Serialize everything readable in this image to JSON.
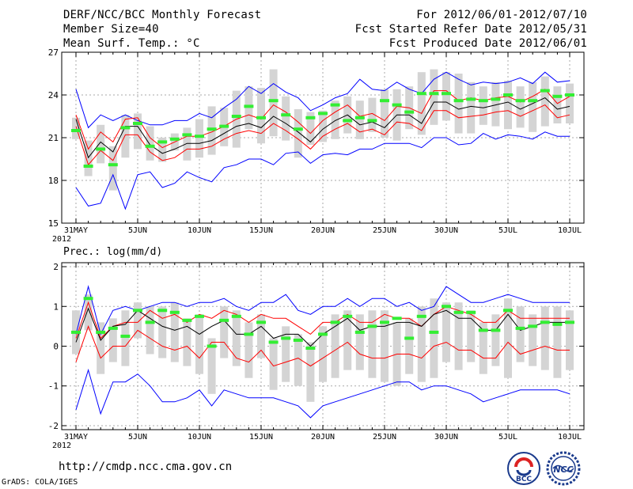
{
  "header": {
    "left": [
      "DERF/NCC/BCC Monthly Forecast",
      "Member Size=40",
      "Mean Surf. Temp.: °C"
    ],
    "right": [
      "For 2012/06/01-2012/07/10",
      "Fcst Started Refer Date 2012/05/31",
      "Fcst Produced Date 2012/06/01"
    ]
  },
  "footer": {
    "url": "http://cmdp.ncc.cma.gov.cn",
    "credit": "GrADS: COLA/IGES",
    "logo_bcc": "BCC",
    "logo_ncc": "NCC"
  },
  "colors": {
    "envelope": "#0000ff",
    "spread": "#ff0000",
    "mean": "#000000",
    "median": "#33ee33",
    "box": "#d4d4d4",
    "grid": "#aaaaaa"
  },
  "chart_data": [
    {
      "type": "line",
      "title": "Mean Surf. Temp.: °C",
      "x_ticks": [
        "31MAY",
        "5JUN",
        "10JUN",
        "15JUN",
        "20JUN",
        "25JUN",
        "30JUN",
        "5JUL",
        "10JUL"
      ],
      "x_tick_days": [
        0,
        5,
        10,
        15,
        20,
        25,
        30,
        35,
        40
      ],
      "x_sublabel": "2012",
      "ylim": [
        15,
        27
      ],
      "y_ticks": [
        15,
        18,
        21,
        24,
        27
      ],
      "grid": true,
      "series": [
        {
          "name": "max",
          "color": "blue",
          "values": [
            24.4,
            21.7,
            22.6,
            22.2,
            22.6,
            22.2,
            21.9,
            21.9,
            22.2,
            22.2,
            22.7,
            22.4,
            23.1,
            23.7,
            24.6,
            24.1,
            24.8,
            24.2,
            23.8,
            22.9,
            23.3,
            23.8,
            24.1,
            25.1,
            24.4,
            24.3,
            24.9,
            24.4,
            24.1,
            25.1,
            25.6,
            25.1,
            24.7,
            24.9,
            24.8,
            24.9,
            25.2,
            24.8,
            25.6,
            24.9,
            25.0
          ]
        },
        {
          "name": "upper",
          "color": "red",
          "values": [
            22.6,
            20.2,
            21.4,
            20.7,
            22.3,
            22.4,
            21.0,
            20.3,
            20.7,
            21.1,
            21.1,
            21.4,
            21.8,
            22.3,
            22.6,
            22.3,
            23.3,
            22.8,
            22.1,
            21.3,
            22.2,
            22.8,
            23.3,
            22.5,
            22.7,
            22.2,
            23.2,
            23.1,
            22.7,
            24.3,
            24.3,
            23.6,
            23.8,
            23.6,
            23.8,
            23.9,
            23.5,
            23.9,
            24.4,
            23.4,
            23.9
          ]
        },
        {
          "name": "mean",
          "color": "black",
          "values": [
            22.3,
            19.6,
            20.7,
            20.0,
            21.8,
            21.8,
            20.5,
            19.9,
            20.2,
            20.6,
            20.6,
            20.8,
            21.3,
            21.8,
            22.0,
            21.7,
            22.5,
            22.0,
            21.4,
            20.7,
            21.6,
            22.2,
            22.6,
            21.9,
            22.1,
            21.7,
            22.6,
            22.6,
            22.0,
            23.5,
            23.5,
            23.0,
            23.2,
            23.1,
            23.3,
            23.5,
            23.0,
            23.4,
            23.8,
            23.0,
            23.2
          ]
        },
        {
          "name": "lower",
          "color": "red",
          "values": [
            21.8,
            19.1,
            20.1,
            19.4,
            21.2,
            21.2,
            20.0,
            19.4,
            19.6,
            20.2,
            20.2,
            20.4,
            20.9,
            21.3,
            21.5,
            21.3,
            22.0,
            21.5,
            20.9,
            20.2,
            21.1,
            21.6,
            22.0,
            21.4,
            21.6,
            21.2,
            22.1,
            22.0,
            21.5,
            22.9,
            22.9,
            22.4,
            22.5,
            22.6,
            22.8,
            22.9,
            22.5,
            22.9,
            23.3,
            22.4,
            22.6
          ]
        },
        {
          "name": "min",
          "color": "blue",
          "values": [
            17.5,
            16.2,
            16.4,
            18.4,
            16.0,
            18.4,
            18.6,
            17.5,
            17.8,
            18.6,
            18.2,
            17.9,
            18.9,
            19.1,
            19.5,
            19.5,
            19.1,
            19.9,
            20.0,
            19.2,
            19.8,
            19.9,
            19.8,
            20.2,
            20.2,
            20.6,
            20.6,
            20.6,
            20.3,
            21.0,
            21.0,
            20.5,
            20.6,
            21.3,
            20.9,
            21.2,
            21.1,
            20.9,
            21.4,
            21.1,
            21.1
          ]
        },
        {
          "name": "median",
          "color": "green",
          "values": [
            21.5,
            19.0,
            20.2,
            19.1,
            21.7,
            22.0,
            20.4,
            20.7,
            20.9,
            21.2,
            21.1,
            21.6,
            21.8,
            22.5,
            23.2,
            22.4,
            23.6,
            22.6,
            21.6,
            22.4,
            22.7,
            23.3,
            22.2,
            22.4,
            22.2,
            23.6,
            23.3,
            22.8,
            24.1,
            24.1,
            24.1,
            23.6,
            23.7,
            23.6,
            23.7,
            24.0,
            23.6,
            23.6,
            24.3,
            23.9,
            24.0
          ]
        }
      ],
      "box_ranges": [
        [
          20.9,
          22.4
        ],
        [
          18.3,
          20.8
        ],
        [
          19.2,
          21.9
        ],
        [
          17.3,
          20.4
        ],
        [
          19.6,
          22.6
        ],
        [
          20.2,
          22.7
        ],
        [
          19.4,
          21.8
        ],
        [
          19.3,
          21.0
        ],
        [
          20.1,
          21.3
        ],
        [
          19.4,
          21.7
        ],
        [
          19.6,
          22.3
        ],
        [
          19.8,
          23.2
        ],
        [
          20.4,
          23.1
        ],
        [
          20.3,
          24.3
        ],
        [
          21.6,
          24.6
        ],
        [
          20.6,
          24.5
        ],
        [
          21.1,
          25.8
        ],
        [
          20.8,
          23.9
        ],
        [
          19.6,
          23.0
        ],
        [
          20.5,
          22.8
        ],
        [
          20.7,
          22.9
        ],
        [
          20.9,
          23.6
        ],
        [
          21.3,
          23.9
        ],
        [
          20.9,
          23.6
        ],
        [
          21.4,
          23.8
        ],
        [
          21.0,
          24.4
        ],
        [
          20.8,
          24.4
        ],
        [
          21.6,
          24.6
        ],
        [
          21.2,
          25.6
        ],
        [
          21.9,
          25.8
        ],
        [
          22.2,
          25.6
        ],
        [
          21.3,
          25.5
        ],
        [
          21.3,
          24.9
        ],
        [
          21.9,
          24.6
        ],
        [
          21.8,
          24.9
        ],
        [
          21.6,
          25.0
        ],
        [
          21.7,
          24.6
        ],
        [
          21.4,
          24.9
        ],
        [
          21.8,
          25.3
        ],
        [
          22.0,
          24.6
        ],
        [
          22.0,
          24.8
        ]
      ]
    },
    {
      "type": "line",
      "title": "Prec.: log(mm/d)",
      "x_ticks": [
        "31MAY",
        "5JUN",
        "10JUN",
        "15JUN",
        "20JUN",
        "25JUN",
        "30JUN",
        "5JUL",
        "10JUL"
      ],
      "x_tick_days": [
        0,
        5,
        10,
        15,
        20,
        25,
        30,
        35,
        40
      ],
      "x_sublabel": "2012",
      "ylim": [
        -2.1,
        2.1
      ],
      "y_ticks": [
        -2,
        -1,
        0,
        1,
        2
      ],
      "grid": true,
      "series": [
        {
          "name": "max",
          "color": "blue",
          "values": [
            0.3,
            1.5,
            0.3,
            0.9,
            1.0,
            0.9,
            1.0,
            1.1,
            1.1,
            1.0,
            1.1,
            1.1,
            1.2,
            1.0,
            0.9,
            1.1,
            1.1,
            1.3,
            0.9,
            0.8,
            1.0,
            1.0,
            1.2,
            1.0,
            1.2,
            1.2,
            1.0,
            1.1,
            0.9,
            1.0,
            1.5,
            1.3,
            1.1,
            1.1,
            1.2,
            1.3,
            1.2,
            1.1,
            1.1,
            1.1,
            1.1
          ]
        },
        {
          "name": "upper",
          "color": "red",
          "values": [
            0.2,
            1.1,
            0.2,
            0.5,
            0.6,
            0.6,
            0.9,
            0.7,
            0.8,
            0.6,
            0.8,
            0.7,
            0.9,
            0.8,
            0.6,
            0.8,
            0.7,
            0.7,
            0.5,
            0.3,
            0.6,
            0.6,
            0.8,
            0.6,
            0.6,
            0.8,
            0.7,
            0.7,
            0.5,
            0.8,
            1.0,
            0.9,
            0.8,
            0.6,
            0.6,
            0.9,
            0.7,
            0.7,
            0.7,
            0.7,
            0.7
          ]
        },
        {
          "name": "mean",
          "color": "black",
          "values": [
            0.1,
            0.95,
            0.15,
            0.5,
            0.55,
            0.9,
            0.7,
            0.5,
            0.4,
            0.5,
            0.3,
            0.5,
            0.65,
            0.3,
            0.3,
            0.5,
            0.2,
            0.3,
            0.3,
            0.0,
            0.3,
            0.5,
            0.7,
            0.4,
            0.5,
            0.5,
            0.6,
            0.6,
            0.5,
            0.8,
            0.9,
            0.7,
            0.7,
            0.4,
            0.4,
            0.8,
            0.4,
            0.5,
            0.6,
            0.6,
            0.6
          ]
        },
        {
          "name": "lower",
          "color": "red",
          "values": [
            -0.4,
            0.5,
            -0.3,
            0.0,
            0.0,
            0.4,
            0.2,
            0.0,
            -0.1,
            0.0,
            -0.3,
            0.1,
            0.1,
            -0.3,
            -0.4,
            -0.1,
            -0.5,
            -0.4,
            -0.3,
            -0.5,
            -0.3,
            -0.1,
            0.1,
            -0.2,
            -0.3,
            -0.3,
            -0.2,
            -0.2,
            -0.3,
            0.0,
            0.1,
            -0.1,
            -0.1,
            -0.3,
            -0.3,
            0.1,
            -0.2,
            -0.1,
            0.0,
            -0.1,
            -0.1
          ]
        },
        {
          "name": "min",
          "color": "blue",
          "values": [
            -1.6,
            -0.6,
            -1.7,
            -0.9,
            -0.9,
            -0.7,
            -1.0,
            -1.4,
            -1.4,
            -1.3,
            -1.1,
            -1.5,
            -1.1,
            -1.2,
            -1.3,
            -1.3,
            -1.3,
            -1.4,
            -1.5,
            -1.8,
            -1.5,
            -1.4,
            -1.3,
            -1.2,
            -1.1,
            -1.0,
            -0.9,
            -0.9,
            -1.1,
            -1.0,
            -1.0,
            -1.1,
            -1.2,
            -1.4,
            -1.3,
            -1.2,
            -1.1,
            -1.1,
            -1.1,
            -1.1,
            -1.2
          ]
        },
        {
          "name": "median",
          "color": "green",
          "values": [
            0.35,
            1.2,
            0.35,
            0.45,
            0.25,
            0.9,
            0.6,
            0.9,
            0.85,
            0.65,
            0.75,
            0.0,
            0.65,
            0.75,
            0.3,
            0.6,
            0.1,
            0.2,
            0.15,
            -0.05,
            0.3,
            0.6,
            0.75,
            0.35,
            0.5,
            0.6,
            0.7,
            0.2,
            0.75,
            0.35,
            1.0,
            0.85,
            0.85,
            0.4,
            0.4,
            0.9,
            0.45,
            0.5,
            0.6,
            0.55,
            0.6
          ]
        }
      ],
      "box_ranges": [
        [
          -0.2,
          0.9
        ],
        [
          0.4,
          1.3
        ],
        [
          -0.7,
          0.6
        ],
        [
          -0.4,
          0.7
        ],
        [
          -0.5,
          0.9
        ],
        [
          0.2,
          1.1
        ],
        [
          -0.2,
          1.0
        ],
        [
          -0.3,
          1.0
        ],
        [
          -0.4,
          1.1
        ],
        [
          -0.5,
          0.7
        ],
        [
          -0.7,
          0.8
        ],
        [
          -1.2,
          0.2
        ],
        [
          -0.3,
          1.0
        ],
        [
          -0.5,
          0.9
        ],
        [
          -0.8,
          0.6
        ],
        [
          -0.3,
          0.8
        ],
        [
          -1.1,
          0.2
        ],
        [
          -0.9,
          0.5
        ],
        [
          -1.0,
          0.3
        ],
        [
          -1.4,
          0.1
        ],
        [
          -0.9,
          0.5
        ],
        [
          -0.8,
          0.8
        ],
        [
          -0.6,
          0.9
        ],
        [
          -0.6,
          0.8
        ],
        [
          -0.8,
          0.9
        ],
        [
          -0.9,
          0.9
        ],
        [
          -1.0,
          0.6
        ],
        [
          -0.7,
          0.7
        ],
        [
          -0.9,
          1.0
        ],
        [
          -0.8,
          1.2
        ],
        [
          -0.4,
          1.1
        ],
        [
          -0.6,
          1.1
        ],
        [
          -0.4,
          0.9
        ],
        [
          -0.7,
          0.6
        ],
        [
          -0.5,
          0.8
        ],
        [
          -0.8,
          1.2
        ],
        [
          -0.4,
          1.0
        ],
        [
          -0.5,
          0.8
        ],
        [
          -0.6,
          1.0
        ],
        [
          -0.8,
          1.0
        ],
        [
          -0.6,
          0.9
        ]
      ]
    }
  ]
}
